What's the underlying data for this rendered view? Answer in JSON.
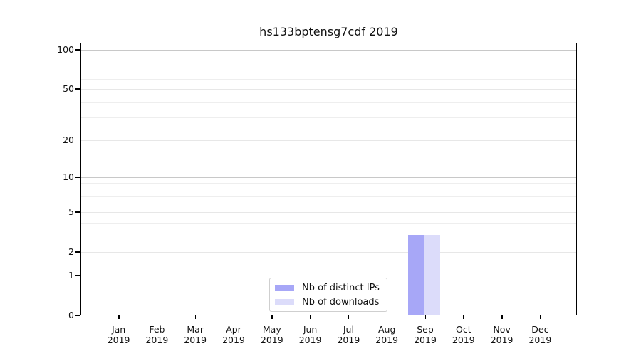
{
  "chart_data": {
    "type": "bar",
    "title": "hs133bptensg7cdf 2019",
    "year_label": "2019",
    "categories": [
      "Jan",
      "Feb",
      "Mar",
      "Apr",
      "May",
      "Jun",
      "Jul",
      "Aug",
      "Sep",
      "Oct",
      "Nov",
      "Dec"
    ],
    "series": [
      {
        "name": "Nb of distinct IPs",
        "color": "#a7a7f7",
        "values": [
          0,
          0,
          0,
          0,
          0,
          0,
          0,
          0,
          3,
          0,
          0,
          0
        ]
      },
      {
        "name": "Nb of downloads",
        "color": "#dcdcfa",
        "values": [
          0,
          0,
          0,
          0,
          0,
          0,
          0,
          0,
          3,
          0,
          0,
          0
        ]
      }
    ],
    "yscale": "log1p",
    "ylim": [
      0,
      113
    ],
    "yticks": [
      100,
      50,
      20,
      10,
      5,
      2,
      1,
      0
    ],
    "yticks_decade": [
      1,
      10,
      100
    ],
    "yticks_minor": [
      3,
      4,
      6,
      7,
      8,
      9,
      30,
      40,
      60,
      70,
      80,
      90
    ],
    "grid": "horizontal",
    "legend_position": "lower center"
  },
  "colors": {
    "grid_major": "#c8c8c8",
    "grid_mid": "#e7e7e7",
    "grid_minor": "#eeeeee",
    "axis": "#000000",
    "legend_border": "#cfcfcf"
  }
}
